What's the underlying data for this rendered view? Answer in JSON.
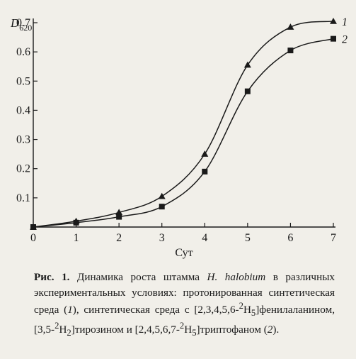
{
  "chart_data": {
    "type": "line",
    "ylabel_main": "D",
    "ylabel_sub": "620",
    "xlabel": "Сут",
    "xlim": [
      0,
      7
    ],
    "ylim": [
      0,
      0.7
    ],
    "x_ticks": [
      "0",
      "1",
      "2",
      "3",
      "4",
      "5",
      "6",
      "7"
    ],
    "y_ticks": [
      "0.1",
      "0.2",
      "0.3",
      "0.4",
      "0.5",
      "0.6",
      "0.7"
    ],
    "grid": false,
    "series": [
      {
        "name": "1",
        "marker": "triangle",
        "x": [
          0,
          1,
          2,
          3,
          4,
          5,
          6,
          7
        ],
        "y": [
          0.0,
          0.02,
          0.05,
          0.105,
          0.25,
          0.555,
          0.685,
          0.705
        ]
      },
      {
        "name": "2",
        "marker": "square",
        "x": [
          0,
          1,
          2,
          3,
          4,
          5,
          6,
          7
        ],
        "y": [
          0.0,
          0.015,
          0.035,
          0.07,
          0.19,
          0.465,
          0.605,
          0.645
        ]
      }
    ]
  },
  "caption": {
    "fig_label": "Рис. 1.",
    "part1": " Динамика роста штамма ",
    "organism": "H. halobium",
    "part2": " в различных экспериментальных условиях: протонированная синтетическая среда (",
    "ref1": "1",
    "part3": "), синтетическая среда с [2,3,4,5,6-",
    "iso1": "2",
    "el1": "H",
    "n1": "5",
    "part4": "]фенилаланином, [3,5-",
    "iso2": "2",
    "el2": "H",
    "n2": "2",
    "part5": "]тирозином и [2,4,5,6,7-",
    "iso3": "2",
    "el3": "H",
    "n3": "5",
    "part6": "]триптофаном (",
    "ref2": "2",
    "part7": ")."
  }
}
